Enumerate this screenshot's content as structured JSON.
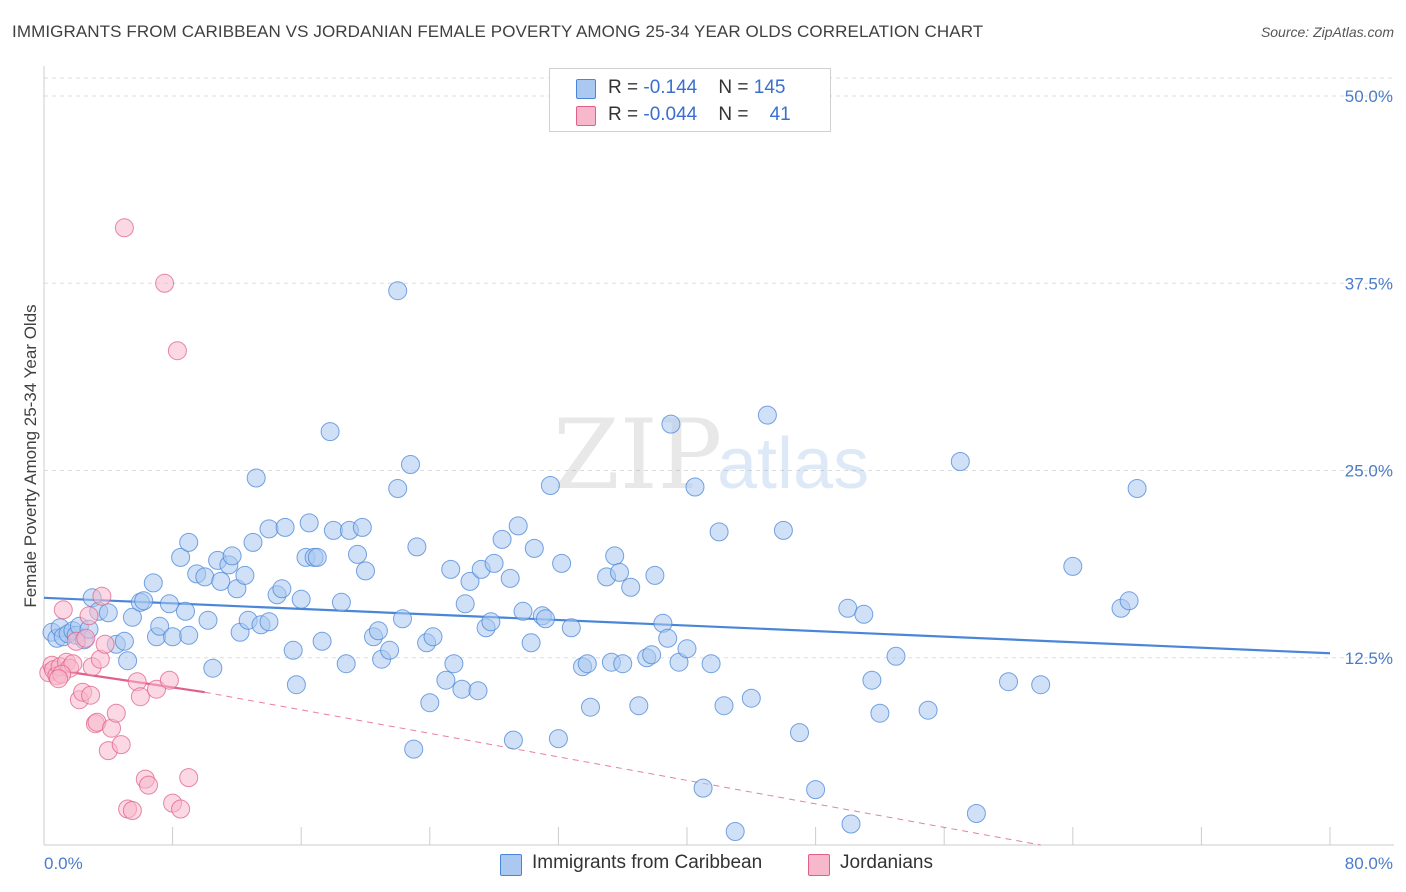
{
  "title": "IMMIGRANTS FROM CARIBBEAN VS JORDANIAN FEMALE POVERTY AMONG 25-34 YEAR OLDS CORRELATION CHART",
  "source": "Source: ZipAtlas.com",
  "watermark": {
    "zip": "ZIP",
    "atlas": "atlas"
  },
  "legend": {
    "rows": [
      {
        "r_label": "R = ",
        "r_value": "-0.144",
        "n_label": "N = ",
        "n_value": "145",
        "color": "#aac8f0"
      },
      {
        "r_label": "R = ",
        "r_value": "-0.044",
        "n_label": "N = ",
        "n_value": "41",
        "color": "#f7b8cc"
      }
    ]
  },
  "bottom_legend": [
    {
      "label": "Immigrants from Caribbean",
      "color": "#aac8f0"
    },
    {
      "label": "Jordanians",
      "color": "#f7b8cc"
    }
  ],
  "chart_data": {
    "type": "scatter",
    "title": "IMMIGRANTS FROM CARIBBEAN VS JORDANIAN FEMALE POVERTY AMONG 25-34 YEAR OLDS CORRELATION CHART",
    "xlabel": "",
    "ylabel": "Female Poverty Among 25-34 Year Olds",
    "xlim": [
      0,
      80
    ],
    "ylim": [
      0,
      50
    ],
    "x_tick_labels": [
      "0.0%",
      "80.0%"
    ],
    "y_ticks": [
      12.5,
      25.0,
      37.5,
      50.0
    ],
    "y_tick_labels": [
      "12.5%",
      "25.0%",
      "37.5%",
      "50.0%"
    ],
    "grid": true,
    "series": [
      {
        "name": "Immigrants from Caribbean",
        "color": "#4a86d8",
        "fill": "#aac8f0",
        "r": -0.144,
        "n": 145,
        "trend": {
          "x0": 0,
          "y0": 16.5,
          "x1": 80,
          "y1": 12.8,
          "dashed_to": null
        },
        "points": [
          [
            0.5,
            14.2
          ],
          [
            0.8,
            13.8
          ],
          [
            1.0,
            14.5
          ],
          [
            1.2,
            13.9
          ],
          [
            1.5,
            14.1
          ],
          [
            1.8,
            14.3
          ],
          [
            2.0,
            14.0
          ],
          [
            2.2,
            14.6
          ],
          [
            2.5,
            13.7
          ],
          [
            2.8,
            14.4
          ],
          [
            3.0,
            16.5
          ],
          [
            3.4,
            15.6
          ],
          [
            4.0,
            15.5
          ],
          [
            4.5,
            13.4
          ],
          [
            5.0,
            13.6
          ],
          [
            5.2,
            12.3
          ],
          [
            5.5,
            15.2
          ],
          [
            6.0,
            16.2
          ],
          [
            6.2,
            16.3
          ],
          [
            6.8,
            17.5
          ],
          [
            7.0,
            13.9
          ],
          [
            7.2,
            14.6
          ],
          [
            7.8,
            16.1
          ],
          [
            8.0,
            13.9
          ],
          [
            8.5,
            19.2
          ],
          [
            8.8,
            15.6
          ],
          [
            9.0,
            14.0
          ],
          [
            9.0,
            20.2
          ],
          [
            9.5,
            18.1
          ],
          [
            10.0,
            17.9
          ],
          [
            10.2,
            15.0
          ],
          [
            10.5,
            11.8
          ],
          [
            10.8,
            19.0
          ],
          [
            11.0,
            17.6
          ],
          [
            11.5,
            18.7
          ],
          [
            11.7,
            19.3
          ],
          [
            12.0,
            17.1
          ],
          [
            12.2,
            14.2
          ],
          [
            12.5,
            18.0
          ],
          [
            12.7,
            15.0
          ],
          [
            13.0,
            20.2
          ],
          [
            13.2,
            24.5
          ],
          [
            13.5,
            14.7
          ],
          [
            14.0,
            21.1
          ],
          [
            14.0,
            14.9
          ],
          [
            14.5,
            16.7
          ],
          [
            14.8,
            17.1
          ],
          [
            15.0,
            21.2
          ],
          [
            15.5,
            13.0
          ],
          [
            15.7,
            10.7
          ],
          [
            16.0,
            16.4
          ],
          [
            16.3,
            19.2
          ],
          [
            16.5,
            21.5
          ],
          [
            16.8,
            19.2
          ],
          [
            17.0,
            19.2
          ],
          [
            17.3,
            13.6
          ],
          [
            17.8,
            27.6
          ],
          [
            18.0,
            21.0
          ],
          [
            18.5,
            16.2
          ],
          [
            18.8,
            12.1
          ],
          [
            19.0,
            21.0
          ],
          [
            19.5,
            19.4
          ],
          [
            19.8,
            21.2
          ],
          [
            20.0,
            18.3
          ],
          [
            20.5,
            13.9
          ],
          [
            20.8,
            14.3
          ],
          [
            21.0,
            12.4
          ],
          [
            21.5,
            13.0
          ],
          [
            22.0,
            23.8
          ],
          [
            22.3,
            15.1
          ],
          [
            22.8,
            25.4
          ],
          [
            23.0,
            6.4
          ],
          [
            23.2,
            19.9
          ],
          [
            23.8,
            13.5
          ],
          [
            24.0,
            9.5
          ],
          [
            24.2,
            13.9
          ],
          [
            25.0,
            11.0
          ],
          [
            25.3,
            18.4
          ],
          [
            25.5,
            12.1
          ],
          [
            26.0,
            10.4
          ],
          [
            26.2,
            16.1
          ],
          [
            26.5,
            17.6
          ],
          [
            27.0,
            10.3
          ],
          [
            27.2,
            18.4
          ],
          [
            27.5,
            14.5
          ],
          [
            27.8,
            14.9
          ],
          [
            28.0,
            18.8
          ],
          [
            28.5,
            20.4
          ],
          [
            29.0,
            17.8
          ],
          [
            29.2,
            7.0
          ],
          [
            29.5,
            21.3
          ],
          [
            29.8,
            15.6
          ],
          [
            30.3,
            13.5
          ],
          [
            30.5,
            19.8
          ],
          [
            31.0,
            15.3
          ],
          [
            31.2,
            15.1
          ],
          [
            31.5,
            24.0
          ],
          [
            32.0,
            7.1
          ],
          [
            32.2,
            18.8
          ],
          [
            32.8,
            14.5
          ],
          [
            33.5,
            11.9
          ],
          [
            33.8,
            12.1
          ],
          [
            34.0,
            9.2
          ],
          [
            35.0,
            17.9
          ],
          [
            35.3,
            12.2
          ],
          [
            35.5,
            19.3
          ],
          [
            35.8,
            18.2
          ],
          [
            36.0,
            12.1
          ],
          [
            36.5,
            17.2
          ],
          [
            37.0,
            9.3
          ],
          [
            37.5,
            12.5
          ],
          [
            37.8,
            12.7
          ],
          [
            38.0,
            18.0
          ],
          [
            38.5,
            14.8
          ],
          [
            38.8,
            13.8
          ],
          [
            39.0,
            28.1
          ],
          [
            39.5,
            12.2
          ],
          [
            40.0,
            13.1
          ],
          [
            40.5,
            23.9
          ],
          [
            41.0,
            3.8
          ],
          [
            41.5,
            12.1
          ],
          [
            42.0,
            20.9
          ],
          [
            42.3,
            9.3
          ],
          [
            43.0,
            0.9
          ],
          [
            44.0,
            9.8
          ],
          [
            45.0,
            28.7
          ],
          [
            46.0,
            21.0
          ],
          [
            47.0,
            7.5
          ],
          [
            48.0,
            3.7
          ],
          [
            50.0,
            15.8
          ],
          [
            50.2,
            1.4
          ],
          [
            51.0,
            15.4
          ],
          [
            51.5,
            11.0
          ],
          [
            52.0,
            8.8
          ],
          [
            53.0,
            12.6
          ],
          [
            55.0,
            9.0
          ],
          [
            57.0,
            25.6
          ],
          [
            58.0,
            2.1
          ],
          [
            60.0,
            10.9
          ],
          [
            62.0,
            10.7
          ],
          [
            64.0,
            18.6
          ],
          [
            67.0,
            15.8
          ],
          [
            67.5,
            16.3
          ],
          [
            68.0,
            23.8
          ],
          [
            22.0,
            37.0
          ]
        ]
      },
      {
        "name": "Jordanians",
        "color": "#e0608a",
        "fill": "#f7b8cc",
        "r": -0.044,
        "n": 41,
        "trend": {
          "x0": 0,
          "y0": 11.8,
          "x1": 10,
          "y1": 10.2,
          "dashed_to": [
            62,
            0
          ]
        },
        "points": [
          [
            0.3,
            11.5
          ],
          [
            0.5,
            12.0
          ],
          [
            0.6,
            11.7
          ],
          [
            0.8,
            11.3
          ],
          [
            1.0,
            11.9
          ],
          [
            1.2,
            15.7
          ],
          [
            1.4,
            12.2
          ],
          [
            1.6,
            11.8
          ],
          [
            1.8,
            12.1
          ],
          [
            2.0,
            13.6
          ],
          [
            2.2,
            9.7
          ],
          [
            2.4,
            10.2
          ],
          [
            2.6,
            13.8
          ],
          [
            2.8,
            15.3
          ],
          [
            3.0,
            11.9
          ],
          [
            3.2,
            8.1
          ],
          [
            3.3,
            8.2
          ],
          [
            3.5,
            12.4
          ],
          [
            3.6,
            16.6
          ],
          [
            3.8,
            13.4
          ],
          [
            4.0,
            6.3
          ],
          [
            4.2,
            7.8
          ],
          [
            4.5,
            8.8
          ],
          [
            4.8,
            6.7
          ],
          [
            5.0,
            41.2
          ],
          [
            5.2,
            2.4
          ],
          [
            5.5,
            2.3
          ],
          [
            5.8,
            10.9
          ],
          [
            6.0,
            9.9
          ],
          [
            6.3,
            4.4
          ],
          [
            6.5,
            4.0
          ],
          [
            7.0,
            10.4
          ],
          [
            7.5,
            37.5
          ],
          [
            7.8,
            11.0
          ],
          [
            8.0,
            2.8
          ],
          [
            8.3,
            33.0
          ],
          [
            8.5,
            2.4
          ],
          [
            9.0,
            4.5
          ],
          [
            1.1,
            11.4
          ],
          [
            2.9,
            10.0
          ],
          [
            0.9,
            11.1
          ]
        ]
      }
    ]
  }
}
